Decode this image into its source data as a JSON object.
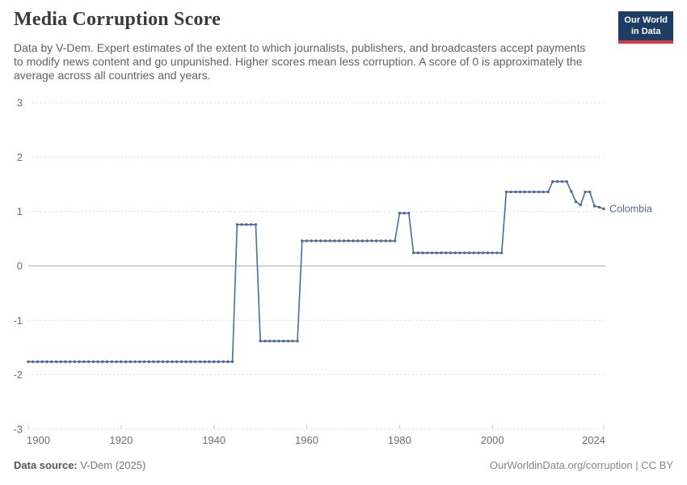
{
  "header": {
    "title": "Media Corruption Score",
    "subtitle": "Data by V-Dem. Expert estimates of the extent to which journalists, publishers, and broadcasters accept payments to modify news content and go unpunished. Higher scores mean less corruption. A score of 0 is approximately the average across all countries and years.",
    "logo": {
      "line1": "Our World",
      "line2": "in Data",
      "bg_color": "#1d3d63",
      "accent_color": "#d73a3f"
    }
  },
  "chart_data": {
    "type": "line",
    "title": "Media Corruption Score",
    "entity": "Colombia",
    "xlabel": "",
    "ylabel": "",
    "xlim": [
      1900,
      2024
    ],
    "ylim": [
      -3,
      3
    ],
    "xticks": [
      1900,
      1920,
      1940,
      1960,
      1980,
      2000,
      2024
    ],
    "yticks": [
      3,
      2,
      1,
      0,
      -1,
      -2,
      -3
    ],
    "grid": "horizontal-dashed",
    "zero_line": true,
    "legend_position": "right-of-line",
    "line_color": "#4c6a9c",
    "marker": "dot-every-year",
    "years": [
      1900,
      1901,
      1902,
      1903,
      1904,
      1905,
      1906,
      1907,
      1908,
      1909,
      1910,
      1911,
      1912,
      1913,
      1914,
      1915,
      1916,
      1917,
      1918,
      1919,
      1920,
      1921,
      1922,
      1923,
      1924,
      1925,
      1926,
      1927,
      1928,
      1929,
      1930,
      1931,
      1932,
      1933,
      1934,
      1935,
      1936,
      1937,
      1938,
      1939,
      1940,
      1941,
      1942,
      1943,
      1944,
      1945,
      1946,
      1947,
      1948,
      1949,
      1950,
      1951,
      1952,
      1953,
      1954,
      1955,
      1956,
      1957,
      1958,
      1959,
      1960,
      1961,
      1962,
      1963,
      1964,
      1965,
      1966,
      1967,
      1968,
      1969,
      1970,
      1971,
      1972,
      1973,
      1974,
      1975,
      1976,
      1977,
      1978,
      1979,
      1980,
      1981,
      1982,
      1983,
      1984,
      1985,
      1986,
      1987,
      1988,
      1989,
      1990,
      1991,
      1992,
      1993,
      1994,
      1995,
      1996,
      1997,
      1998,
      1999,
      2000,
      2001,
      2002,
      2003,
      2004,
      2005,
      2006,
      2007,
      2008,
      2009,
      2010,
      2011,
      2012,
      2013,
      2014,
      2015,
      2016,
      2017,
      2018,
      2019,
      2020,
      2021,
      2022,
      2023,
      2024
    ],
    "values": [
      -1.76,
      -1.76,
      -1.76,
      -1.76,
      -1.76,
      -1.76,
      -1.76,
      -1.76,
      -1.76,
      -1.76,
      -1.76,
      -1.76,
      -1.76,
      -1.76,
      -1.76,
      -1.76,
      -1.76,
      -1.76,
      -1.76,
      -1.76,
      -1.76,
      -1.76,
      -1.76,
      -1.76,
      -1.76,
      -1.76,
      -1.76,
      -1.76,
      -1.76,
      -1.76,
      -1.76,
      -1.76,
      -1.76,
      -1.76,
      -1.76,
      -1.76,
      -1.76,
      -1.76,
      -1.76,
      -1.76,
      -1.76,
      -1.76,
      -1.76,
      -1.76,
      -1.76,
      0.76,
      0.76,
      0.76,
      0.76,
      0.76,
      -1.38,
      -1.38,
      -1.38,
      -1.38,
      -1.38,
      -1.38,
      -1.38,
      -1.38,
      -1.38,
      0.46,
      0.46,
      0.46,
      0.46,
      0.46,
      0.46,
      0.46,
      0.46,
      0.46,
      0.46,
      0.46,
      0.46,
      0.46,
      0.46,
      0.46,
      0.46,
      0.46,
      0.46,
      0.46,
      0.46,
      0.46,
      0.97,
      0.97,
      0.97,
      0.24,
      0.24,
      0.24,
      0.24,
      0.24,
      0.24,
      0.24,
      0.24,
      0.24,
      0.24,
      0.24,
      0.24,
      0.24,
      0.24,
      0.24,
      0.24,
      0.24,
      0.24,
      0.24,
      0.24,
      1.36,
      1.36,
      1.36,
      1.36,
      1.36,
      1.36,
      1.36,
      1.36,
      1.36,
      1.36,
      1.55,
      1.55,
      1.55,
      1.55,
      1.37,
      1.18,
      1.12,
      1.36,
      1.36,
      1.1,
      1.08,
      1.05
    ]
  },
  "footer": {
    "datasource_label": "Data source:",
    "datasource_value": "V-Dem (2025)",
    "credit": "OurWorldinData.org/corruption | CC BY"
  }
}
